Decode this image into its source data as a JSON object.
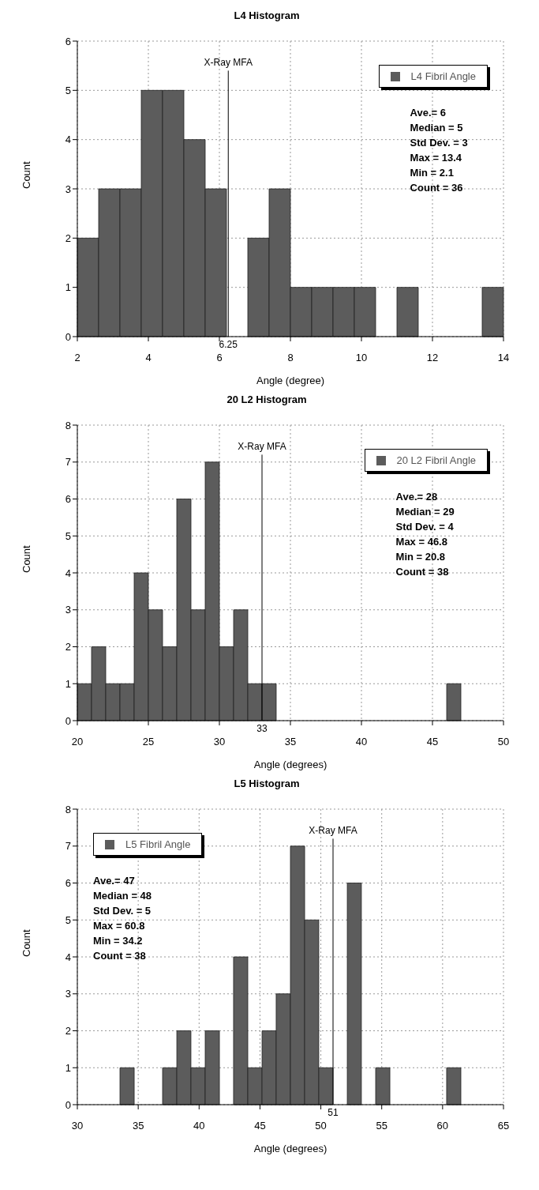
{
  "chart_data": [
    {
      "type": "histogram",
      "title": "L4  Histogram",
      "xlabel": "Angle (degree)",
      "ylabel": "Count",
      "bins": [
        2.0,
        2.6,
        3.2,
        3.8,
        4.4,
        5.0,
        5.6,
        6.2,
        6.8,
        7.4,
        8.0,
        8.6,
        9.2,
        9.8,
        10.4,
        11.0,
        11.6,
        12.2,
        12.8,
        13.4,
        14.0
      ],
      "series": [
        {
          "name": "L4 Fibril Angle",
          "color": "#5c5c5c",
          "values": [
            2,
            3,
            3,
            5,
            5,
            4,
            3,
            0,
            2,
            3,
            1,
            1,
            1,
            1,
            0,
            1,
            0,
            0,
            0,
            1
          ]
        }
      ],
      "xlim": [
        2,
        14
      ],
      "xticks": [
        2,
        4,
        6,
        8,
        10,
        12,
        14
      ],
      "ylim": [
        0,
        6
      ],
      "yticks": [
        0,
        1,
        2,
        3,
        4,
        5,
        6
      ],
      "grid": true,
      "legend": "top right",
      "ref_lines": [
        {
          "axis": "x",
          "value": 6.25,
          "label": "X-Ray MFA",
          "color": "#000000"
        }
      ],
      "annotations": [
        "Ave.=  6",
        "Median =  5",
        "Std Dev. = 3",
        "Max = 13.4",
        "Min = 2.1",
        "Count = 36",
        {
          "text": "6.25",
          "x": 6.25,
          "y": 0
        }
      ]
    },
    {
      "type": "histogram",
      "title": "20 L2 Histogram",
      "xlabel": "Angle (degrees)",
      "ylabel": "Count",
      "bins": [
        20,
        21,
        22,
        23,
        24,
        25,
        26,
        27,
        28,
        29,
        30,
        31,
        32,
        33,
        34,
        35,
        36,
        37,
        38,
        39,
        40,
        41,
        42,
        43,
        44,
        45,
        46,
        47
      ],
      "series": [
        {
          "name": "20 L2 Fibril Angle",
          "color": "#5c5c5c",
          "values": [
            1,
            2,
            1,
            1,
            4,
            3,
            2,
            6,
            3,
            7,
            2,
            3,
            1,
            1,
            0,
            0,
            0,
            0,
            0,
            0,
            0,
            0,
            0,
            0,
            0,
            0,
            1
          ]
        }
      ],
      "xlim": [
        20,
        50
      ],
      "xticks": [
        20,
        25,
        30,
        35,
        40,
        45,
        50
      ],
      "ylim": [
        0,
        8
      ],
      "yticks": [
        0,
        1,
        2,
        3,
        4,
        5,
        6,
        7,
        8
      ],
      "grid": true,
      "legend": "top right",
      "ref_lines": [
        {
          "axis": "x",
          "value": 33,
          "label": "X-Ray MFA",
          "color": "#000000"
        }
      ],
      "annotations": [
        "Ave.=  28",
        "Median = 29",
        "Std Dev. = 4",
        "Max = 46.8",
        "Min = 20.8",
        "Count = 38",
        {
          "text": "33",
          "x": 33,
          "y": 0
        }
      ]
    },
    {
      "type": "histogram",
      "title": "L5 Histogram",
      "xlabel": "Angle (degrees)",
      "ylabel": "Count",
      "bins": [
        33.5,
        34.67,
        35.83,
        37.0,
        38.17,
        39.33,
        40.5,
        41.67,
        42.83,
        44.0,
        45.17,
        46.33,
        47.5,
        48.67,
        49.83,
        51.0,
        52.17,
        53.33,
        54.5,
        55.67,
        56.83,
        58.0,
        59.17,
        60.33,
        61.5
      ],
      "series": [
        {
          "name": "L5 Fibril Angle",
          "color": "#5c5c5c",
          "values": [
            1,
            0,
            0,
            1,
            2,
            1,
            2,
            0,
            4,
            1,
            2,
            3,
            7,
            5,
            1,
            0,
            6,
            0,
            1,
            0,
            0,
            0,
            0,
            1
          ]
        }
      ],
      "xlim": [
        30,
        65
      ],
      "xticks": [
        30,
        35,
        40,
        45,
        50,
        55,
        60,
        65
      ],
      "ylim": [
        0,
        8
      ],
      "yticks": [
        0,
        1,
        2,
        3,
        4,
        5,
        6,
        7,
        8
      ],
      "grid": true,
      "legend": "top left",
      "ref_lines": [
        {
          "axis": "x",
          "value": 51,
          "label": "X-Ray MFA",
          "color": "#000000"
        }
      ],
      "annotations": [
        "Ave.=  47",
        "Median =  48",
        "Std Dev. = 5",
        "Max = 60.8",
        "Min = 34.2",
        "Count = 38",
        {
          "text": "51",
          "x": 51,
          "y": 0
        }
      ]
    }
  ]
}
